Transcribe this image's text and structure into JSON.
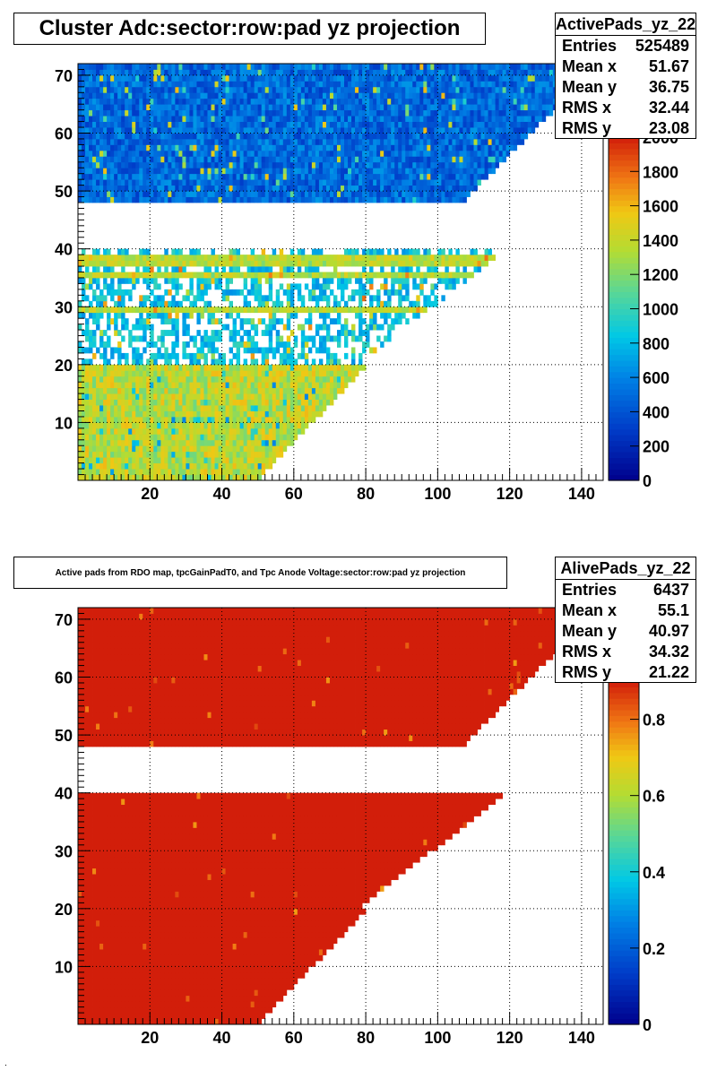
{
  "chart_data": [
    {
      "type": "heatmap",
      "title": "Cluster Adc:sector:row:pad yz projection",
      "xlabel": "",
      "ylabel": "",
      "xlim": [
        0,
        146
      ],
      "ylim": [
        0,
        72
      ],
      "x_ticks": [
        "20",
        "40",
        "60",
        "80",
        "100",
        "120",
        "140"
      ],
      "y_ticks": [
        "10",
        "20",
        "30",
        "40",
        "50",
        "60",
        "70"
      ],
      "colorbar": {
        "min": 0,
        "max": 2000,
        "ticks": [
          "0",
          "200",
          "400",
          "600",
          "800",
          "1000",
          "1200",
          "1400",
          "1600",
          "1800",
          "2000"
        ],
        "palette": "rainbow"
      },
      "grid": true,
      "regions": [
        {
          "rows": [
            49,
            72
          ],
          "value_typical": 450,
          "note_values": [
            300,
            700
          ]
        },
        {
          "rows": [
            21,
            40
          ],
          "value_typical": 900
        },
        {
          "rows": [
            1,
            20
          ],
          "value_typical": 1350
        }
      ],
      "stats": {
        "name": "ActivePads_yz_22",
        "entries_label": "Entries",
        "entries": "525489",
        "mean_x_label": "Mean x",
        "mean_x": "51.67",
        "mean_y_label": "Mean y",
        "mean_y": "36.75",
        "rms_x_label": "RMS x",
        "rms_x": "32.44",
        "rms_y_label": "RMS y",
        "rms_y": "23.08"
      }
    },
    {
      "type": "heatmap",
      "title": "Active pads from RDO map, tpcGainPadT0,  and Tpc Anode Voltage:sector:row:pad yz projection",
      "xlabel": "",
      "ylabel": "",
      "xlim": [
        0,
        146
      ],
      "ylim": [
        0,
        72
      ],
      "x_ticks": [
        "20",
        "40",
        "60",
        "80",
        "100",
        "120",
        "140"
      ],
      "y_ticks": [
        "10",
        "20",
        "30",
        "40",
        "50",
        "60",
        "70"
      ],
      "colorbar": {
        "min": 0,
        "max": 0.9,
        "ticks": [
          "0",
          "0.2",
          "0.4",
          "0.6",
          "0.8"
        ],
        "palette": "rainbow"
      },
      "grid": true,
      "regions": [
        {
          "rows": [
            49,
            72
          ],
          "value_typical": 0.98
        },
        {
          "rows": [
            1,
            40
          ],
          "value_typical": 0.97
        }
      ],
      "stats": {
        "name": "AlivePads_yz_22",
        "entries_label": "Entries",
        "entries": "6437",
        "mean_x_label": "Mean x",
        "mean_x": "55.1",
        "mean_y_label": "Mean y",
        "mean_y": "40.97",
        "rms_x_label": "RMS x",
        "rms_x": "34.32",
        "rms_y_label": "RMS y",
        "rms_y": "21.22"
      }
    }
  ]
}
